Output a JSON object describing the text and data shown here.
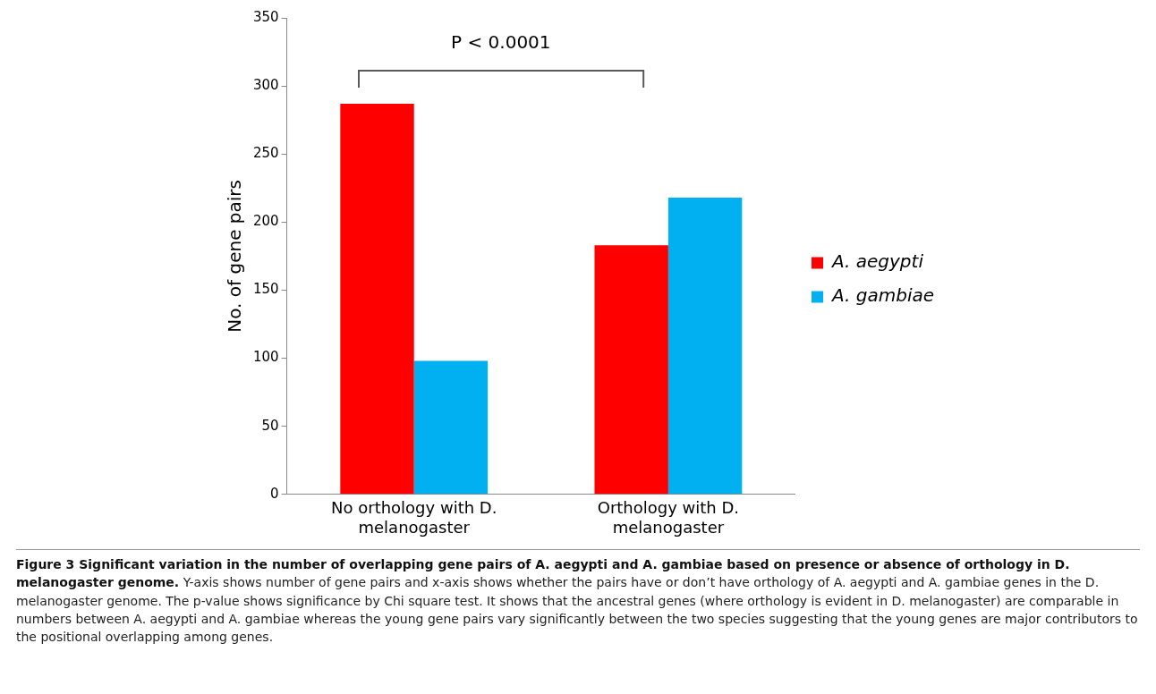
{
  "chart_data": {
    "type": "bar",
    "categories": [
      "No orthology with D. melanogaster",
      "Orthology with D. melanogaster"
    ],
    "series": [
      {
        "name": "A. aegypti",
        "color": "#ff0000",
        "values": [
          287,
          183
        ]
      },
      {
        "name": "A. gambiae",
        "color": "#00b0f0",
        "values": [
          98,
          218
        ]
      }
    ],
    "ylabel": "No. of gene pairs",
    "ylim": [
      0,
      350
    ],
    "yticks": [
      0,
      50,
      100,
      150,
      200,
      250,
      300,
      350
    ],
    "grid": false,
    "legend": "right",
    "annotations": [
      "P < 0.0001",
      "Figure 3 Significant variation in the number of overlapping gene pairs of A. aegypti and A. gambiae based on presence or absence of orthology in D. melanogaster genome.",
      "Y-axis shows number of gene pairs and x-axis shows whether the pairs have or don’t have orthology of A. aegypti and A. gambiae genes in the D. melanogaster genome. The p-value shows significance by Chi square test. It shows that the ancestral genes (where orthology is evident in D. melanogaster) are comparable in numbers between A. aegypti and A. gambiae whereas the young gene pairs vary significantly between the two species suggesting that the young genes are major contributors to the positional overlapping among genes."
    ]
  }
}
